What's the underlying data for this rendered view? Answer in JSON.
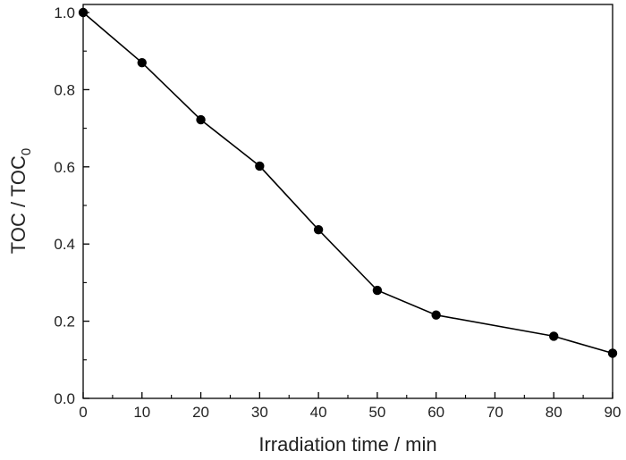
{
  "chart_data": {
    "type": "line",
    "title": "",
    "xlabel": "Irradiation time / min",
    "ylabel": {
      "main": "TOC / TOC",
      "subscript": "0"
    },
    "x": [
      0,
      10,
      20,
      30,
      40,
      50,
      60,
      80,
      90
    ],
    "series": [
      {
        "values": [
          1.0,
          0.87,
          0.722,
          0.602,
          0.437,
          0.28,
          0.216,
          0.161,
          0.117
        ],
        "marker": "circle",
        "color": "#000000"
      }
    ],
    "xlim": [
      0,
      90
    ],
    "ylim": [
      0,
      1.0
    ],
    "xticks": [
      "0",
      "10",
      "20",
      "30",
      "40",
      "50",
      "60",
      "70",
      "80",
      "90"
    ],
    "yticks": [
      "0.0",
      "0.2",
      "0.4",
      "0.6",
      "0.8",
      "1.0"
    ],
    "grid": false,
    "legend": "none"
  }
}
